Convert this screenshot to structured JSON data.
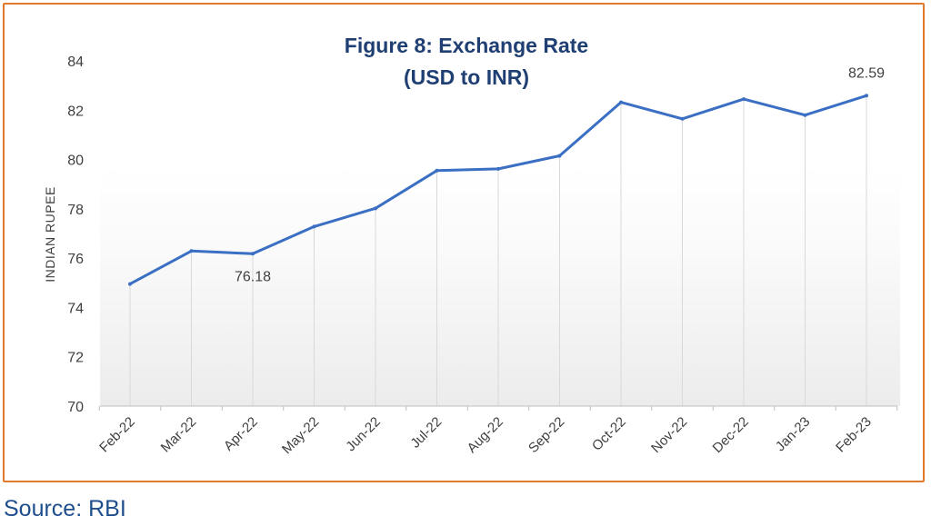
{
  "source_text": "Source: RBI",
  "chart_data": {
    "type": "line",
    "title_line1": "Figure 8: Exchange Rate",
    "title_line2": "(USD to INR)",
    "ylabel": "INDIAN RUPEE",
    "xlabel": "",
    "categories": [
      "Feb-22",
      "Mar-22",
      "Apr-22",
      "May-22",
      "Jun-22",
      "Jul-22",
      "Aug-22",
      "Sep-22",
      "Oct-22",
      "Nov-22",
      "Dec-22",
      "Jan-23",
      "Feb-23"
    ],
    "series": [
      {
        "values": [
          74.95,
          76.29,
          76.18,
          77.28,
          78.02,
          79.55,
          79.62,
          80.15,
          82.32,
          81.65,
          82.45,
          81.8,
          82.59
        ]
      }
    ],
    "data_labels": [
      {
        "index": 2,
        "text": "76.18"
      },
      {
        "index": 12,
        "text": "82.59"
      }
    ],
    "ylim": [
      70,
      84
    ],
    "yticks": [
      "70",
      "72",
      "74",
      "76",
      "78",
      "80",
      "82",
      "84"
    ],
    "grid": "vertical drop lines",
    "colors": {
      "line": "#3A6FC4",
      "title": "#1F3F73",
      "frame": "#E27A2B",
      "axis_text": "#404040",
      "drop_line": "#D9D9D9"
    }
  }
}
